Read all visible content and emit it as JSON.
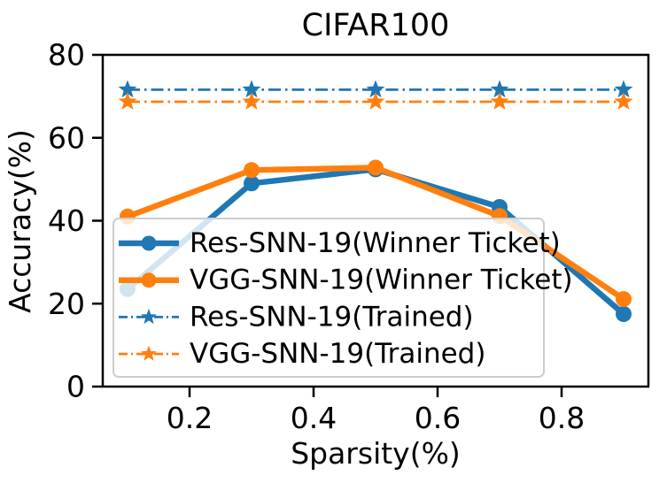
{
  "chart_data": {
    "type": "line",
    "title": "CIFAR100",
    "xlabel": "Sparsity(%)",
    "ylabel": "Accuracy(%)",
    "xlim": [
      0.06,
      0.94
    ],
    "ylim": [
      0,
      80
    ],
    "xticks": [
      0.2,
      0.4,
      0.6,
      0.8
    ],
    "yticks": [
      0,
      20,
      40,
      60,
      80
    ],
    "grid": false,
    "legend_position": "lower-left-inside",
    "legend_background": "rgba(255,255,255,0.8)",
    "legend_border_color": "#cccccc",
    "x": [
      0.1,
      0.3,
      0.5,
      0.7,
      0.9
    ],
    "series": [
      {
        "name": "Res-SNN-19(Winner Ticket)",
        "color": "#1f77b4",
        "line_style": "solid",
        "marker": "circle",
        "values": [
          23.5,
          49.0,
          52.4,
          43.3,
          17.5
        ]
      },
      {
        "name": "VGG-SNN-19(Winner Ticket)",
        "color": "#ff7f0e",
        "line_style": "solid",
        "marker": "circle",
        "values": [
          41.0,
          52.2,
          52.8,
          41.1,
          21.1
        ]
      },
      {
        "name": "Res-SNN-19(Trained)",
        "color": "#1f77b4",
        "line_style": "dashdot",
        "marker": "star",
        "values": [
          71.6,
          71.6,
          71.6,
          71.6,
          71.6
        ]
      },
      {
        "name": "VGG-SNN-19(Trained)",
        "color": "#ff7f0e",
        "line_style": "dashdot",
        "marker": "star",
        "values": [
          68.7,
          68.7,
          68.7,
          68.7,
          68.7
        ]
      }
    ]
  }
}
